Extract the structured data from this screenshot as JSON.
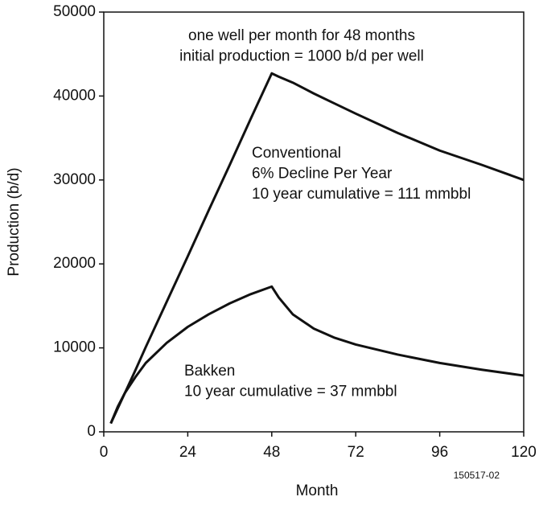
{
  "chart_data": {
    "type": "line",
    "x_label": "Month",
    "y_label": "Production (b/d)",
    "x": [
      2,
      4,
      6,
      9,
      12,
      18,
      24,
      30,
      36,
      42,
      48,
      50,
      54,
      60,
      66,
      72,
      84,
      96,
      108,
      120
    ],
    "series": [
      {
        "color": "#111111",
        "values": [
          1000,
          2800,
          4600,
          7300,
          10100,
          15500,
          20900,
          26400,
          31800,
          37300,
          42700,
          42300,
          41600,
          40300,
          39100,
          37900,
          35600,
          33500,
          31800,
          30000
        ]
      },
      {
        "color": "#111111",
        "values": [
          1000,
          3000,
          4600,
          6500,
          8200,
          10600,
          12500,
          14000,
          15300,
          16400,
          17300,
          16000,
          14000,
          12300,
          11200,
          10400,
          9200,
          8200,
          7400,
          6700
        ]
      }
    ],
    "xlim": [
      0,
      120
    ],
    "xticks": [
      0,
      24,
      48,
      72,
      96,
      120
    ],
    "ylim": [
      0,
      50000
    ],
    "yticks": [
      0,
      10000,
      20000,
      30000,
      40000,
      50000
    ],
    "grid": false,
    "annotations": [
      [
        "one well per month for 48 months",
        "initial production = 1000 b/d per well"
      ],
      [
        "Conventional",
        "6% Decline Per Year",
        "10 year cumulative = 111 mmbbl"
      ],
      [
        "Bakken",
        "10 year cumulative = 37 mmbbl"
      ]
    ],
    "figure_id": "150517-02"
  }
}
